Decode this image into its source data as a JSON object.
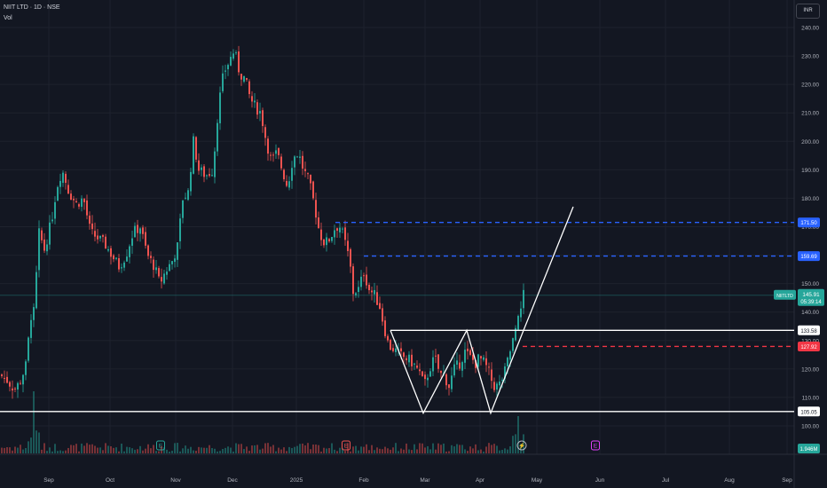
{
  "header": {
    "title": "NIIT LTD · 1D · NSE",
    "volume_label": "Vol",
    "currency": "INR"
  },
  "colors": {
    "up": "#26a69a",
    "down": "#ef5350",
    "blue_line": "#2962ff",
    "red_line": "#f23645",
    "white": "#ffffff",
    "background": "#131722"
  },
  "chart_data": {
    "type": "candlestick",
    "title": "NIIT LTD · 1D · NSE",
    "ylim": [
      94,
      246
    ],
    "y_ticks": [
      "100.00",
      "110.00",
      "120.00",
      "130.00",
      "140.00",
      "150.00",
      "160.00",
      "170.00",
      "180.00",
      "190.00",
      "200.00",
      "210.00",
      "220.00",
      "230.00",
      "240.00"
    ],
    "x_ticks": [
      "Sep",
      "Oct",
      "Nov",
      "Dec",
      "2025",
      "Feb",
      "Mar",
      "Apr",
      "May",
      "Jun",
      "Jul",
      "Aug",
      "Sep"
    ],
    "close_path": [
      [
        0,
        118
      ],
      [
        8,
        116
      ],
      [
        16,
        113
      ],
      [
        22,
        115
      ],
      [
        30,
        122
      ],
      [
        34,
        138
      ],
      [
        38,
        142
      ],
      [
        44,
        168
      ],
      [
        50,
        162
      ],
      [
        58,
        172
      ],
      [
        64,
        184
      ],
      [
        70,
        190
      ],
      [
        78,
        182
      ],
      [
        86,
        178
      ],
      [
        94,
        180
      ],
      [
        102,
        168
      ],
      [
        110,
        166
      ],
      [
        118,
        164
      ],
      [
        126,
        160
      ],
      [
        134,
        156
      ],
      [
        142,
        160
      ],
      [
        150,
        168
      ],
      [
        158,
        170
      ],
      [
        166,
        160
      ],
      [
        174,
        156
      ],
      [
        180,
        150
      ],
      [
        186,
        154
      ],
      [
        194,
        158
      ],
      [
        200,
        163
      ],
      [
        206,
        180
      ],
      [
        212,
        182
      ],
      [
        218,
        200
      ],
      [
        224,
        190
      ],
      [
        232,
        188
      ],
      [
        240,
        190
      ],
      [
        246,
        212
      ],
      [
        252,
        224
      ],
      [
        258,
        228
      ],
      [
        264,
        232
      ],
      [
        270,
        224
      ],
      [
        276,
        222
      ],
      [
        282,
        215
      ],
      [
        288,
        212
      ],
      [
        294,
        210
      ],
      [
        300,
        200
      ],
      [
        306,
        193
      ],
      [
        312,
        196
      ],
      [
        318,
        190
      ],
      [
        324,
        184
      ],
      [
        330,
        194
      ],
      [
        336,
        196
      ],
      [
        342,
        190
      ],
      [
        348,
        186
      ],
      [
        354,
        178
      ],
      [
        360,
        168
      ],
      [
        366,
        164
      ],
      [
        372,
        166
      ],
      [
        378,
        170
      ],
      [
        384,
        170
      ],
      [
        390,
        163
      ],
      [
        394,
        158
      ],
      [
        398,
        147
      ],
      [
        404,
        148
      ],
      [
        410,
        154
      ],
      [
        416,
        148
      ],
      [
        422,
        146
      ],
      [
        428,
        142
      ],
      [
        432,
        136
      ],
      [
        438,
        128
      ],
      [
        444,
        127
      ],
      [
        450,
        125
      ],
      [
        456,
        124
      ],
      [
        462,
        123
      ],
      [
        468,
        121
      ],
      [
        474,
        118
      ],
      [
        478,
        114
      ],
      [
        484,
        120
      ],
      [
        490,
        124
      ],
      [
        496,
        118
      ],
      [
        500,
        118
      ],
      [
        506,
        114
      ],
      [
        512,
        120
      ],
      [
        518,
        122
      ],
      [
        524,
        126
      ],
      [
        530,
        124
      ],
      [
        536,
        122
      ],
      [
        540,
        124
      ],
      [
        546,
        122
      ],
      [
        552,
        118
      ],
      [
        556,
        114
      ],
      [
        562,
        114
      ],
      [
        568,
        118
      ],
      [
        574,
        125
      ],
      [
        578,
        130
      ],
      [
        582,
        137
      ],
      [
        586,
        142
      ],
      [
        590,
        146
      ]
    ],
    "last_price": "145.91",
    "countdown": "05:39:14",
    "symbol_tag": "NIITLTD",
    "volume_tag": "1.946M",
    "levels": [
      {
        "value": 171.5,
        "label": "171.50",
        "style": "dashed",
        "color": "#2962ff"
      },
      {
        "value": 159.69,
        "label": "159.69",
        "style": "dashed",
        "color": "#2962ff"
      },
      {
        "value": 133.58,
        "label": "133.58",
        "style": "solid",
        "color": "#ffffff"
      },
      {
        "value": 127.92,
        "label": "127.92",
        "style": "dashed",
        "color": "#f23645"
      },
      {
        "value": 105.05,
        "label": "105.05",
        "style": "solid",
        "color": "#ffffff"
      }
    ],
    "pattern": [
      [
        440,
        133.58
      ],
      [
        477,
        104.5
      ],
      [
        526,
        133.58
      ],
      [
        553,
        104.5
      ],
      [
        590,
        133.58
      ],
      [
        646,
        177
      ]
    ],
    "event_markers": [
      {
        "x": 181,
        "label": "E"
      },
      {
        "x": 390,
        "label": "E"
      },
      {
        "x": 588,
        "label": "⚡"
      },
      {
        "x": 671,
        "label": "E"
      }
    ]
  }
}
